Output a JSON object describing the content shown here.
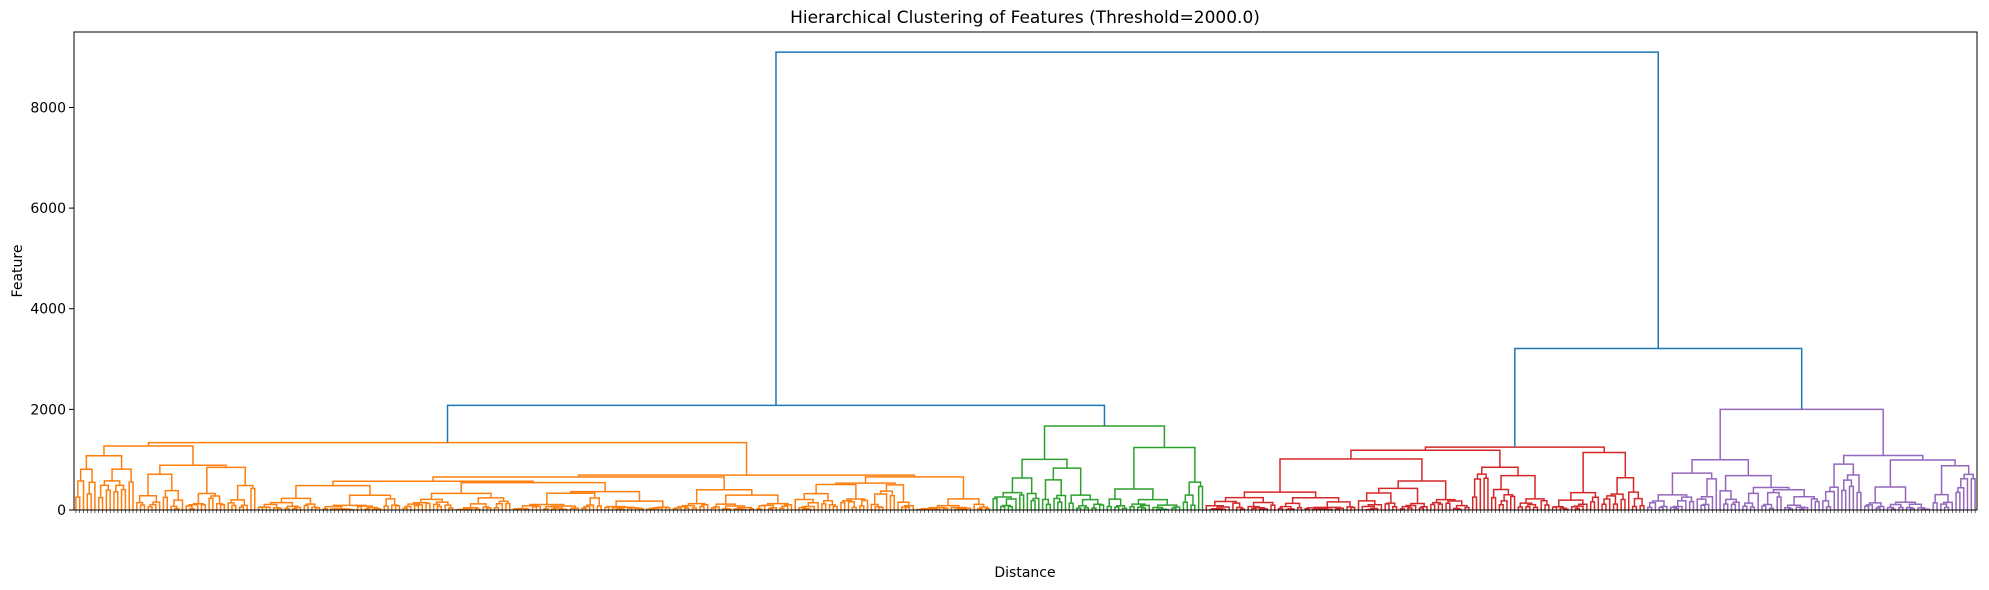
{
  "chart_data": {
    "type": "dendrogram",
    "title": "Hierarchical Clustering of Features (Threshold=2000.0)",
    "xlabel": "Distance",
    "ylabel": "Feature",
    "ylim": [
      0,
      9500
    ],
    "yticks": [
      0,
      2000,
      4000,
      6000,
      8000
    ],
    "threshold": 2000.0,
    "leaf_count": 500,
    "grid": false,
    "link_color": "#1f77b4",
    "cluster_colors": [
      "#ff7f0e",
      "#2ca02c",
      "#d62728",
      "#9467bd"
    ],
    "top_links": [
      {
        "name": "root",
        "height": 9100,
        "left": "orange-green",
        "right": "red-purple"
      },
      {
        "name": "orange-green",
        "height": 2080,
        "left": "cluster-orange",
        "right": "cluster-green"
      },
      {
        "name": "red-purple",
        "height": 3210,
        "left": "cluster-red",
        "right": "cluster-purple"
      }
    ],
    "clusters": [
      {
        "name": "cluster-orange",
        "color": "#ff7f0e",
        "leaf_range": [
          0,
          241
        ],
        "top_height": 1340
      },
      {
        "name": "cluster-green",
        "color": "#2ca02c",
        "leaf_range": [
          241,
          297
        ],
        "top_height": 1670
      },
      {
        "name": "cluster-red",
        "color": "#d62728",
        "leaf_range": [
          297,
          413
        ],
        "top_height": 1250
      },
      {
        "name": "cluster-purple",
        "color": "#9467bd",
        "leaf_range": [
          413,
          500
        ],
        "top_height": 2000
      }
    ]
  }
}
